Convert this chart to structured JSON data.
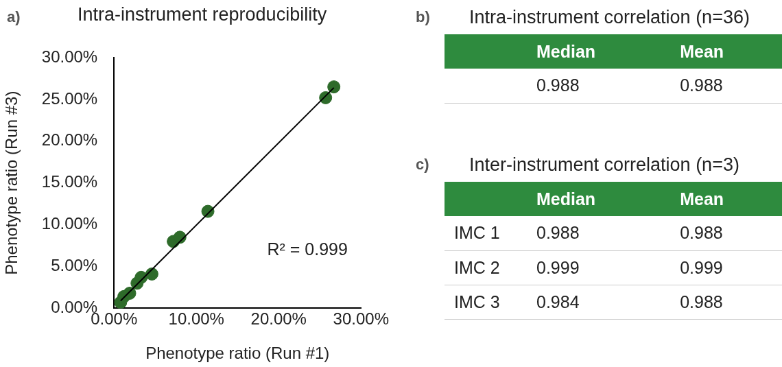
{
  "chart_data": [
    {
      "type": "scatter",
      "title": "Intra-instrument reproducibility",
      "xlabel": "Phenotype ratio (Run #1)",
      "ylabel": "Phenotype ratio (Run #3)",
      "annotations": [
        "a)",
        "R² = 0.999"
      ],
      "series": [
        {
          "type": "scatter",
          "marker": "circle",
          "color": "#2e6b2a",
          "x": [
            0.8,
            1.2,
            1.9,
            2.8,
            3.3,
            4.6,
            7.2,
            8.0,
            11.4,
            25.7,
            26.7
          ],
          "values": [
            0.7,
            1.4,
            1.8,
            3.0,
            3.7,
            4.1,
            8.0,
            8.5,
            11.6,
            25.2,
            26.5
          ]
        },
        {
          "type": "line",
          "marker": "none",
          "color": "#000000",
          "x": [
            0.8,
            26.7
          ],
          "values": [
            0.9,
            26.4
          ]
        }
      ],
      "grid": false,
      "legend": false,
      "xlim": [
        0,
        30
      ],
      "xticks": [
        {
          "value": 0,
          "label": "0.00%"
        },
        {
          "value": 10,
          "label": "10.00%"
        },
        {
          "value": 20,
          "label": "20.00%"
        },
        {
          "value": 30,
          "label": "30.00%"
        }
      ],
      "ylim": [
        0,
        30
      ],
      "yticks": [
        {
          "value": 0,
          "label": "0.00%"
        },
        {
          "value": 5,
          "label": "5.00%"
        },
        {
          "value": 10,
          "label": "10.00%"
        },
        {
          "value": 15,
          "label": "15.00%"
        },
        {
          "value": 20,
          "label": "20.00%"
        },
        {
          "value": 25,
          "label": "25.00%"
        },
        {
          "value": 30,
          "label": "30.00%"
        }
      ]
    },
    {
      "type": "other",
      "title": "Intra-instrument correlation (n=36)",
      "annotations": [
        "b)"
      ],
      "categories": [
        "Median",
        "Mean"
      ],
      "y_categories": [
        null
      ],
      "cell_labels": [
        [
          "0.988",
          "0.988"
        ]
      ]
    },
    {
      "type": "other",
      "title": "Inter-instrument correlation (n=3)",
      "annotations": [
        "c)"
      ],
      "categories": [
        "Median",
        "Mean"
      ],
      "y_categories": [
        "IMC 1",
        "IMC 2",
        "IMC 3"
      ],
      "cell_labels": [
        [
          "0.988",
          "0.988"
        ],
        [
          "0.999",
          "0.999"
        ],
        [
          "0.984",
          "0.988"
        ]
      ]
    }
  ]
}
